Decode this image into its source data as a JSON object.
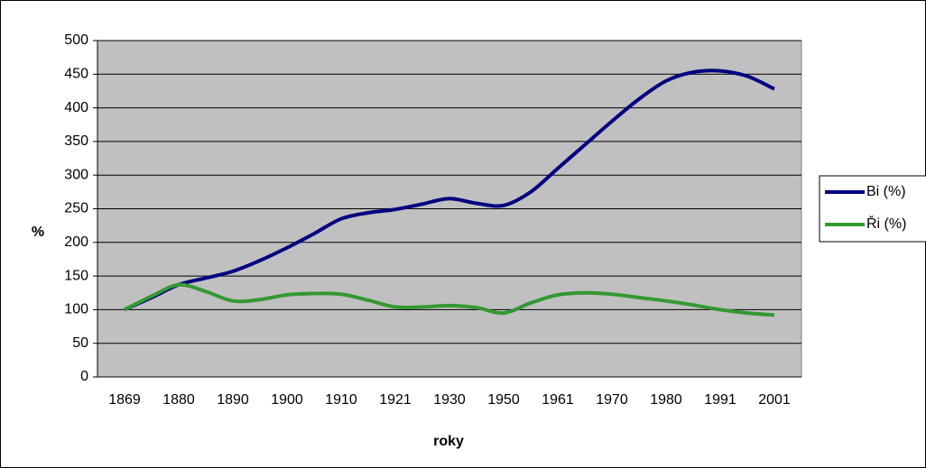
{
  "chart_data": {
    "type": "line",
    "x_label": "roky",
    "y_label": "%",
    "categories": [
      "1869",
      null,
      "1880",
      null,
      "1890",
      null,
      "1900",
      null,
      "1910",
      null,
      "1921",
      null,
      "1930",
      null,
      "1950",
      null,
      "1961",
      null,
      "1970",
      null,
      "1980",
      null,
      "1991",
      null,
      "2001"
    ],
    "series": [
      {
        "name": "Bi (%)",
        "color": "#000080",
        "values": [
          100,
          118,
          137,
          147,
          157,
          173,
          192,
          213,
          235,
          244,
          249,
          257,
          265,
          258,
          255,
          275,
          310,
          345,
          380,
          413,
          440,
          453,
          455,
          447,
          428
        ]
      },
      {
        "name": "Ři (%)",
        "color": "#339933",
        "values": [
          100,
          120,
          137,
          127,
          113,
          115,
          122,
          124,
          123,
          114,
          104,
          104,
          106,
          103,
          95,
          110,
          122,
          125,
          123,
          118,
          113,
          107,
          100,
          95,
          92
        ]
      }
    ],
    "ylim": [
      0,
      500
    ],
    "yticks": [
      0,
      50,
      100,
      150,
      200,
      250,
      300,
      350,
      400,
      450,
      500
    ],
    "grid": true,
    "legend": "right",
    "plot_background": "#c0c0c0"
  }
}
